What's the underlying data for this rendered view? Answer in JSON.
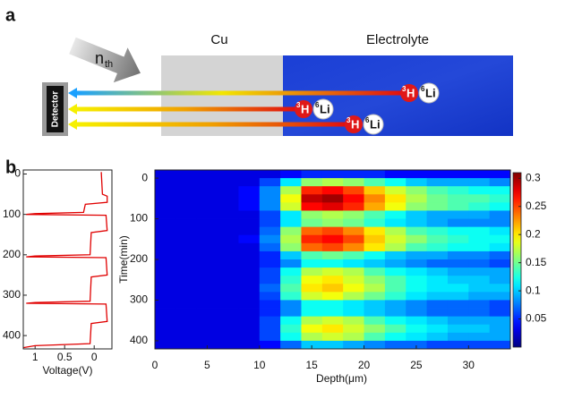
{
  "panel_a": {
    "label": "a",
    "neutron": {
      "symbol": "n",
      "subscript": "th"
    },
    "detector": "Detector",
    "regions": [
      "Cu",
      "Electrolyte"
    ],
    "particles": [
      {
        "triton": {
          "mass": "3",
          "symbol": "H"
        },
        "lithium": {
          "mass": "6",
          "symbol": "Li"
        }
      },
      {
        "triton": {
          "mass": "3",
          "symbol": "H"
        },
        "lithium": {
          "mass": "6",
          "symbol": "Li"
        }
      },
      {
        "triton": {
          "mass": "3",
          "symbol": "H"
        },
        "lithium": {
          "mass": "6",
          "symbol": "Li"
        }
      }
    ]
  },
  "chart_data": [
    {
      "type": "line",
      "panel_label": "b",
      "orientation": "vertical",
      "x": [
        -5,
        50,
        55,
        70,
        75,
        95,
        98,
        100,
        102,
        140,
        145,
        200,
        203,
        205,
        207,
        250,
        255,
        315,
        318,
        320,
        322,
        365,
        370,
        420,
        425,
        430
      ],
      "series": [
        {
          "color": "#e00000",
          "values": [
            -0.12,
            -0.14,
            -0.22,
            -0.22,
            0.15,
            0.18,
            1.0,
            1.15,
            -0.2,
            -0.22,
            0.05,
            0.07,
            1.0,
            1.15,
            -0.2,
            -0.22,
            0.05,
            0.07,
            1.0,
            1.15,
            -0.2,
            -0.22,
            0.05,
            0.07,
            1.0,
            1.2
          ]
        }
      ],
      "xlim": [
        -10,
        433
      ],
      "xticks": [
        0,
        100,
        200,
        300,
        400
      ],
      "ylim": [
        1.2,
        -0.3
      ],
      "yticks": [
        1,
        0.5,
        0
      ],
      "ylabel": "Voltage(V)"
    },
    {
      "type": "heatmap",
      "colormap": "jet",
      "y_inverted": true,
      "x": [
        1,
        3,
        5,
        7,
        9,
        11,
        13,
        15,
        17,
        19,
        21,
        23,
        25,
        27,
        29,
        31,
        33
      ],
      "y": [
        -10,
        10,
        30,
        50,
        70,
        90,
        110,
        130,
        150,
        170,
        190,
        210,
        230,
        250,
        270,
        290,
        310,
        330,
        350,
        370,
        390,
        410
      ],
      "z": [
        [
          0.03,
          0.03,
          0.03,
          0.03,
          0.03,
          0.03,
          0.04,
          0.05,
          0.05,
          0.05,
          0.05,
          0.04,
          0.04,
          0.04,
          0.04,
          0.04,
          0.04
        ],
        [
          0.03,
          0.03,
          0.03,
          0.03,
          0.03,
          0.06,
          0.11,
          0.16,
          0.17,
          0.16,
          0.14,
          0.12,
          0.1,
          0.09,
          0.09,
          0.09,
          0.08
        ],
        [
          0.03,
          0.03,
          0.03,
          0.03,
          0.04,
          0.08,
          0.17,
          0.26,
          0.27,
          0.25,
          0.21,
          0.18,
          0.16,
          0.14,
          0.13,
          0.12,
          0.12
        ],
        [
          0.03,
          0.03,
          0.03,
          0.03,
          0.04,
          0.08,
          0.19,
          0.29,
          0.3,
          0.27,
          0.23,
          0.2,
          0.17,
          0.15,
          0.14,
          0.14,
          0.13
        ],
        [
          0.03,
          0.03,
          0.03,
          0.03,
          0.04,
          0.08,
          0.18,
          0.27,
          0.28,
          0.26,
          0.22,
          0.19,
          0.16,
          0.15,
          0.14,
          0.13,
          0.12
        ],
        [
          0.03,
          0.03,
          0.03,
          0.03,
          0.03,
          0.06,
          0.11,
          0.16,
          0.17,
          0.16,
          0.14,
          0.12,
          0.1,
          0.09,
          0.09,
          0.09,
          0.08
        ],
        [
          0.03,
          0.03,
          0.03,
          0.03,
          0.03,
          0.06,
          0.11,
          0.15,
          0.16,
          0.15,
          0.13,
          0.11,
          0.1,
          0.09,
          0.08,
          0.08,
          0.08
        ],
        [
          0.03,
          0.03,
          0.03,
          0.03,
          0.03,
          0.07,
          0.16,
          0.24,
          0.25,
          0.23,
          0.2,
          0.17,
          0.14,
          0.13,
          0.12,
          0.12,
          0.11
        ],
        [
          0.03,
          0.03,
          0.03,
          0.03,
          0.04,
          0.08,
          0.17,
          0.26,
          0.27,
          0.25,
          0.21,
          0.18,
          0.16,
          0.14,
          0.13,
          0.12,
          0.12
        ],
        [
          0.03,
          0.03,
          0.03,
          0.03,
          0.03,
          0.07,
          0.16,
          0.24,
          0.25,
          0.23,
          0.2,
          0.17,
          0.14,
          0.13,
          0.12,
          0.12,
          0.11
        ],
        [
          0.03,
          0.03,
          0.03,
          0.03,
          0.03,
          0.05,
          0.1,
          0.14,
          0.15,
          0.14,
          0.12,
          0.1,
          0.09,
          0.09,
          0.08,
          0.08,
          0.07
        ],
        [
          0.03,
          0.03,
          0.03,
          0.03,
          0.03,
          0.05,
          0.08,
          0.12,
          0.12,
          0.11,
          0.1,
          0.09,
          0.08,
          0.07,
          0.07,
          0.07,
          0.06
        ],
        [
          0.03,
          0.03,
          0.03,
          0.03,
          0.03,
          0.06,
          0.12,
          0.17,
          0.18,
          0.17,
          0.14,
          0.12,
          0.11,
          0.1,
          0.09,
          0.09,
          0.09
        ],
        [
          0.03,
          0.03,
          0.03,
          0.03,
          0.03,
          0.06,
          0.13,
          0.19,
          0.2,
          0.18,
          0.16,
          0.14,
          0.12,
          0.11,
          0.1,
          0.1,
          0.09
        ],
        [
          0.03,
          0.03,
          0.03,
          0.03,
          0.03,
          0.07,
          0.14,
          0.2,
          0.21,
          0.19,
          0.17,
          0.14,
          0.12,
          0.11,
          0.11,
          0.1,
          0.1
        ],
        [
          0.03,
          0.03,
          0.03,
          0.03,
          0.03,
          0.06,
          0.13,
          0.18,
          0.19,
          0.17,
          0.15,
          0.13,
          0.11,
          0.1,
          0.1,
          0.09,
          0.09
        ],
        [
          0.03,
          0.03,
          0.03,
          0.03,
          0.03,
          0.05,
          0.08,
          0.12,
          0.12,
          0.11,
          0.1,
          0.09,
          0.08,
          0.07,
          0.07,
          0.07,
          0.06
        ],
        [
          0.03,
          0.03,
          0.03,
          0.03,
          0.03,
          0.05,
          0.08,
          0.12,
          0.12,
          0.11,
          0.1,
          0.09,
          0.08,
          0.07,
          0.07,
          0.07,
          0.06
        ],
        [
          0.03,
          0.03,
          0.03,
          0.03,
          0.03,
          0.06,
          0.12,
          0.17,
          0.18,
          0.17,
          0.14,
          0.12,
          0.11,
          0.1,
          0.09,
          0.09,
          0.09
        ],
        [
          0.03,
          0.03,
          0.03,
          0.03,
          0.03,
          0.06,
          0.13,
          0.19,
          0.2,
          0.18,
          0.16,
          0.14,
          0.12,
          0.11,
          0.1,
          0.1,
          0.09
        ],
        [
          0.03,
          0.03,
          0.03,
          0.03,
          0.03,
          0.06,
          0.12,
          0.17,
          0.18,
          0.17,
          0.14,
          0.12,
          0.11,
          0.1,
          0.09,
          0.09,
          0.09
        ],
        [
          0.03,
          0.03,
          0.03,
          0.03,
          0.03,
          0.04,
          0.07,
          0.1,
          0.1,
          0.09,
          0.08,
          0.07,
          0.07,
          0.06,
          0.06,
          0.06,
          0.06
        ]
      ],
      "xlim": [
        0,
        34
      ],
      "xticks": [
        0,
        5,
        10,
        15,
        20,
        25,
        30
      ],
      "ylim": [
        -20,
        420
      ],
      "yticks": [
        0,
        100,
        200,
        300,
        400
      ],
      "xlabel": "Depth(μm)",
      "ylabel": "Time(min)",
      "clim": [
        0,
        0.31
      ],
      "cticks": [
        0.05,
        0.1,
        0.15,
        0.2,
        0.25,
        0.3
      ]
    }
  ]
}
